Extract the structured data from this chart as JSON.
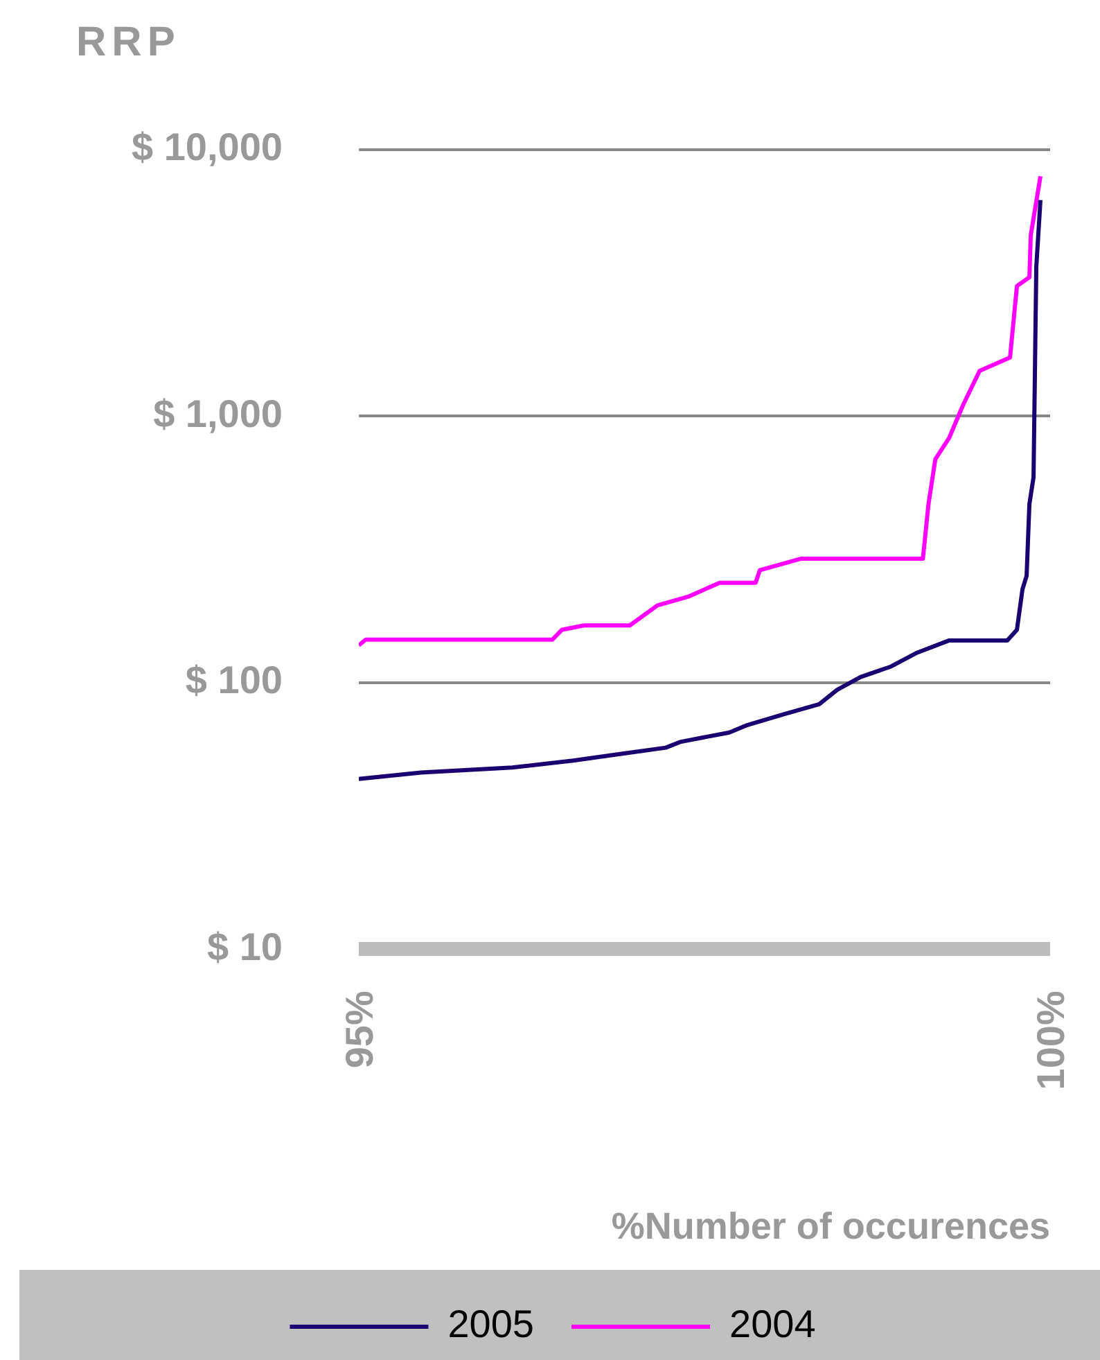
{
  "chart_data": {
    "type": "line",
    "ylabel": "RRP",
    "xlabel": "%Number of occurences",
    "log": "y",
    "grid": "y",
    "legend": "bottom",
    "marker": "none",
    "line_style": "solid",
    "xlim": [
      95,
      100
    ],
    "xticks": [
      {
        "value": 95,
        "label": "95%"
      },
      {
        "value": 100,
        "label": "100%"
      }
    ],
    "ylim": [
      10,
      10000
    ],
    "yticks": [
      {
        "value": 10,
        "label": "$ 10"
      },
      {
        "value": 100,
        "label": "$ 100"
      },
      {
        "value": 1000,
        "label": "$ 1,000"
      },
      {
        "value": 10000,
        "label": "$ 10,000"
      }
    ],
    "series": [
      {
        "name": "2005",
        "color": "#1a0070",
        "x": [
          95,
          95.45,
          96.11,
          96.55,
          96.89,
          97.22,
          97.33,
          97.68,
          97.8,
          98.07,
          98.33,
          98.46,
          98.63,
          98.85,
          99.03,
          99.27,
          99.69,
          99.76,
          99.8,
          99.83,
          99.85,
          99.88,
          99.9,
          99.93
        ],
        "values": [
          43.5,
          46,
          48,
          51,
          54,
          57,
          60,
          65,
          69,
          76,
          83,
          94,
          105,
          115,
          129,
          144,
          144,
          158,
          224,
          252,
          467,
          590,
          3630,
          6470
        ]
      },
      {
        "name": "2004",
        "color": "#ff00ff",
        "x": [
          95,
          95.05,
          96.4,
          96.47,
          96.63,
          96.96,
          97.16,
          97.38,
          97.61,
          97.87,
          97.9,
          98.2,
          99.08,
          99.12,
          99.17,
          99.27,
          99.37,
          99.49,
          99.71,
          99.76,
          99.85,
          99.86,
          99.93
        ],
        "values": [
          138,
          145,
          145,
          158,
          164,
          164,
          195,
          210,
          237,
          237,
          264,
          292,
          292,
          467,
          690,
          830,
          1100,
          1480,
          1660,
          3080,
          3320,
          4780,
          7950
        ]
      }
    ]
  }
}
